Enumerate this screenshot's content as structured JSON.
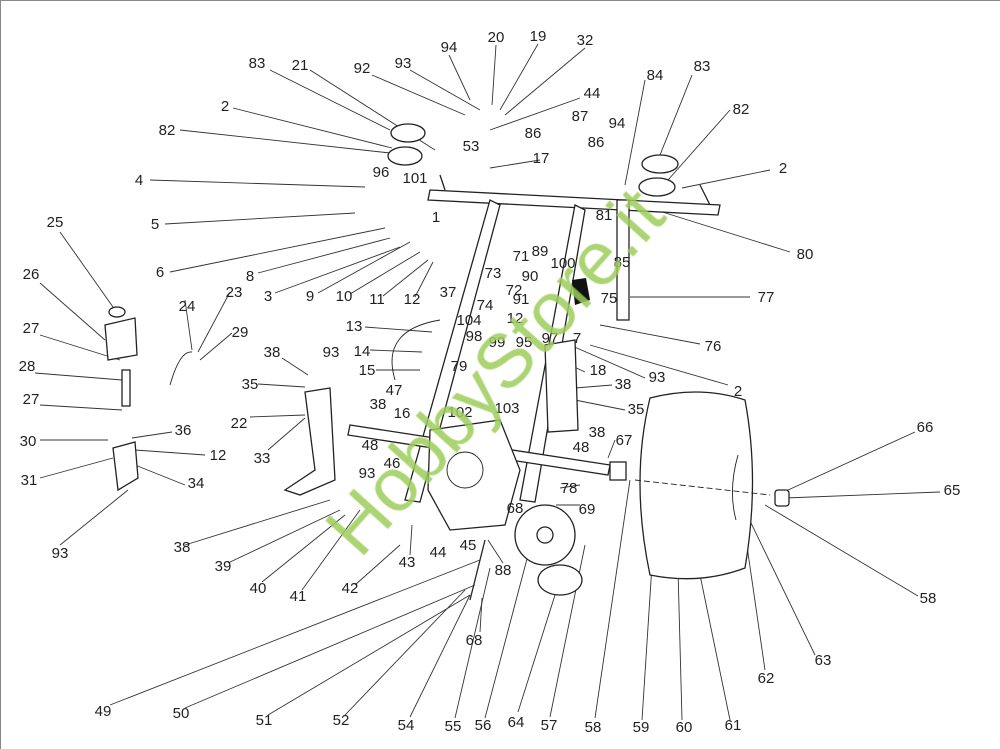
{
  "diagram": {
    "part_labels": [
      "94",
      "20",
      "19",
      "32",
      "83",
      "21",
      "92",
      "93",
      "44",
      "53",
      "86",
      "17",
      "2",
      "82",
      "4",
      "96",
      "101",
      "5",
      "6",
      "8",
      "3",
      "9",
      "10",
      "11",
      "12",
      "37",
      "1",
      "25",
      "26",
      "24",
      "23",
      "29",
      "27",
      "28",
      "27",
      "30",
      "31",
      "36",
      "12",
      "34",
      "93",
      "38",
      "93",
      "35",
      "22",
      "33",
      "38",
      "48",
      "46",
      "13",
      "14",
      "15",
      "47",
      "16",
      "104",
      "98",
      "74",
      "73",
      "72",
      "71",
      "89",
      "90",
      "91",
      "79",
      "99",
      "95",
      "97",
      "7",
      "12",
      "100",
      "85",
      "75",
      "81",
      "87",
      "86",
      "94",
      "84",
      "83",
      "82",
      "2",
      "80",
      "77",
      "76",
      "2",
      "93",
      "18",
      "38",
      "35",
      "38",
      "48",
      "67",
      "78",
      "68",
      "69",
      "102",
      "103",
      "66",
      "65",
      "58",
      "63",
      "62",
      "61",
      "60",
      "59",
      "58",
      "57",
      "64",
      "56",
      "55",
      "54",
      "52",
      "51",
      "50",
      "49",
      "68",
      "88",
      "45",
      "44",
      "43",
      "42",
      "41",
      "40",
      "39",
      "38",
      "93"
    ],
    "watermark": "HobbyStore.it",
    "watermark_color": "#9ccc5a"
  }
}
